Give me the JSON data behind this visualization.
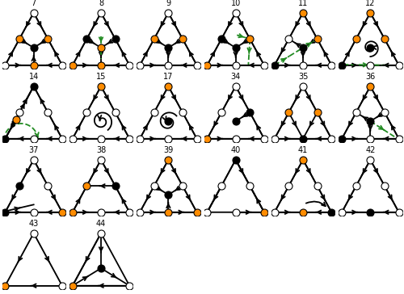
{
  "panels": [
    {
      "id": "7",
      "row": 0,
      "col": 0
    },
    {
      "id": "8",
      "row": 0,
      "col": 1
    },
    {
      "id": "9",
      "row": 0,
      "col": 2
    },
    {
      "id": "10",
      "row": 0,
      "col": 3
    },
    {
      "id": "11",
      "row": 0,
      "col": 4
    },
    {
      "id": "12",
      "row": 0,
      "col": 5
    },
    {
      "id": "14",
      "row": 1,
      "col": 0
    },
    {
      "id": "15",
      "row": 1,
      "col": 1
    },
    {
      "id": "17",
      "row": 1,
      "col": 2
    },
    {
      "id": "34",
      "row": 1,
      "col": 3
    },
    {
      "id": "35",
      "row": 1,
      "col": 4
    },
    {
      "id": "36",
      "row": 1,
      "col": 5
    },
    {
      "id": "37",
      "row": 2,
      "col": 0
    },
    {
      "id": "38",
      "row": 2,
      "col": 1
    },
    {
      "id": "39",
      "row": 2,
      "col": 2
    },
    {
      "id": "40",
      "row": 2,
      "col": 3
    },
    {
      "id": "41",
      "row": 2,
      "col": 4
    },
    {
      "id": "42",
      "row": 2,
      "col": 5
    },
    {
      "id": "43",
      "row": 3,
      "col": 0
    },
    {
      "id": "44",
      "row": 3,
      "col": 1
    }
  ],
  "orange_color": "#FF8C00",
  "green_color": "#228B22",
  "ncols": 6,
  "nrows": 4
}
